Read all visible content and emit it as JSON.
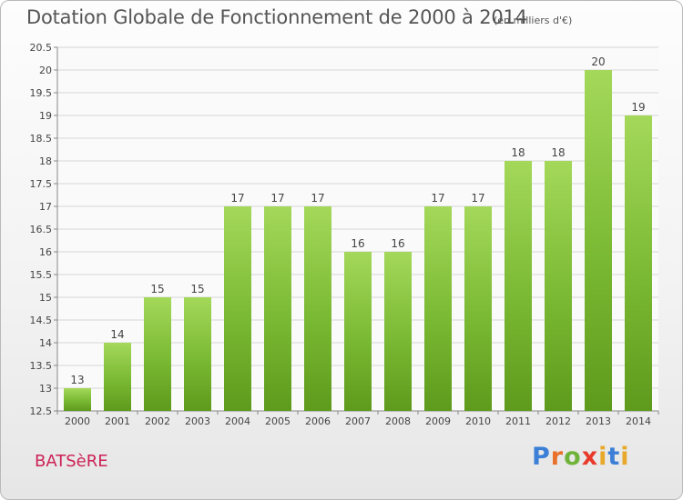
{
  "chart_data": {
    "type": "bar",
    "title": "Dotation Globale de Fonctionnement de 2000 à 2014",
    "subtitle": "(en milliers d'€)",
    "categories": [
      "2000",
      "2001",
      "2002",
      "2003",
      "2004",
      "2005",
      "2006",
      "2007",
      "2008",
      "2009",
      "2010",
      "2011",
      "2012",
      "2013",
      "2014"
    ],
    "values": [
      13,
      14,
      15,
      15,
      17,
      17,
      17,
      16,
      16,
      17,
      17,
      18,
      18,
      20,
      19
    ],
    "value_labels": [
      "13",
      "14",
      "15",
      "15",
      "17",
      "17",
      "17",
      "16",
      "16",
      "17",
      "17",
      "18",
      "18",
      "20",
      "19"
    ],
    "ylim": [
      12.5,
      20.5
    ],
    "yticks": [
      12.5,
      13,
      13.5,
      14,
      14.5,
      15,
      15.5,
      16,
      16.5,
      17,
      17.5,
      18,
      18.5,
      19,
      19.5,
      20,
      20.5
    ],
    "ytick_labels": [
      "12.5",
      "13",
      "13.5",
      "14",
      "14.5",
      "15",
      "15.5",
      "16",
      "16.5",
      "17",
      "17.5",
      "18",
      "18.5",
      "19",
      "19.5",
      "20",
      "20.5"
    ],
    "grid": true,
    "bar_color": "#7ab933",
    "bar_color_light": "#a4d85a",
    "bar_color_dark": "#5e9a1c"
  },
  "footer": {
    "commune": "BATSèRE",
    "logo": "Proxiti",
    "logo_letters": [
      "P",
      "r",
      "o",
      "x",
      "i",
      "t",
      "i"
    ]
  }
}
